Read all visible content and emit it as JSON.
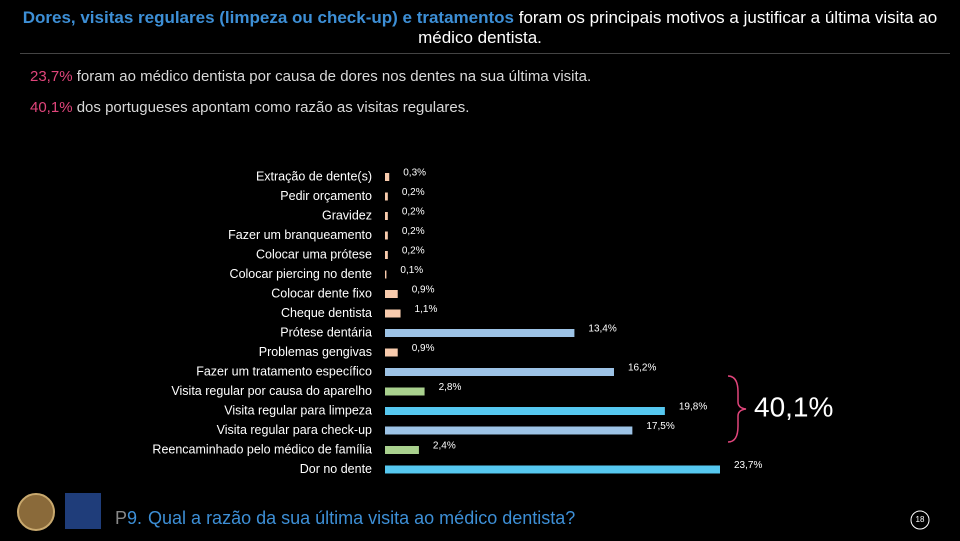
{
  "header": {
    "title_highlight": "Dores, visitas regulares (limpeza ou check-up) e tratamentos",
    "title_rest": " foram os principais motivos a justificar a última visita ao médico dentista.",
    "highlights": [
      {
        "value": "23,7%",
        "text": " foram ao médico dentista por causa de dores nos dentes na sua última visita."
      },
      {
        "value": "40,1%",
        "text": " dos portugueses apontam como razão as visitas regulares."
      }
    ]
  },
  "chart_data": {
    "type": "bar",
    "orientation": "horizontal",
    "categories": [
      "Extração de dente(s)",
      "Pedir orçamento",
      "Gravidez",
      "Fazer um branqueamento",
      "Colocar uma prótese",
      "Colocar piercing no dente",
      "Colocar dente fixo",
      "Cheque dentista",
      "Prótese dentária",
      "Problemas gengivas",
      "Fazer um tratamento específico",
      "Visita regular por causa do aparelho",
      "Visita regular para limpeza",
      "Visita regular para check-up",
      "Reencaminhado pelo médico de família",
      "Dor no dente"
    ],
    "values": [
      0.3,
      0.2,
      0.2,
      0.2,
      0.2,
      0.1,
      0.9,
      1.1,
      13.4,
      0.9,
      16.2,
      2.8,
      19.8,
      17.5,
      2.4,
      23.7
    ],
    "value_labels": [
      "0,3%",
      "0,2%",
      "0,2%",
      "0,2%",
      "0,2%",
      "0,1%",
      "0,9%",
      "1,1%",
      "13,4%",
      "0,9%",
      "16,2%",
      "2,8%",
      "19,8%",
      "17,5%",
      "2,4%",
      "23,7%"
    ],
    "colors": [
      "#f8cbad",
      "#f8cbad",
      "#f8cbad",
      "#f8cbad",
      "#f8cbad",
      "#f8cbad",
      "#f8cbad",
      "#f8cbad",
      "#9dc3e6",
      "#f8cbad",
      "#9dc3e6",
      "#a9d18e",
      "#56c8f0",
      "#9dc3e6",
      "#a9d18e",
      "#56c8f0"
    ],
    "annotation": "40,1%"
  },
  "footer": {
    "prefix": "P",
    "number": "9.",
    "question": "Qual a razão da sua última visita ao médico dentista?",
    "page": "18"
  }
}
